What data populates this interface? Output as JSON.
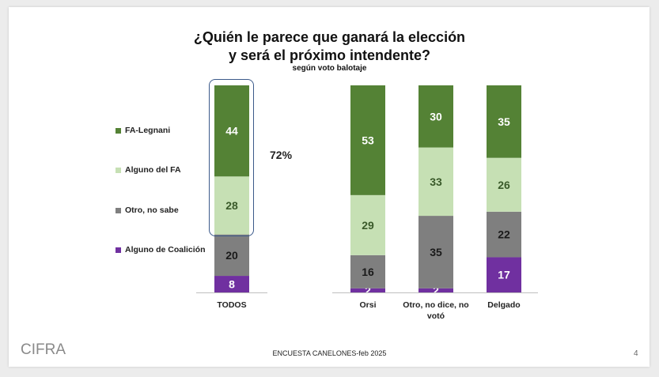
{
  "title_line1": "¿Quién le parece que ganará la elección",
  "title_line2": "y será el próximo intendente?",
  "subtitle": "según voto balotaje",
  "highlight_value": "72%",
  "footer": "ENCUESTA CANELONES-feb 2025",
  "page_number": "4",
  "logo_text": "CIFRA",
  "colors": {
    "fa_legnani": "#548235",
    "alguno_fa": "#c6e0b4",
    "otro_no_sabe": "#7f7f7f",
    "alguno_coalicion": "#7030a0",
    "highlight_box": "#3b5a8a"
  },
  "chart_data": {
    "type": "bar",
    "stacked": true,
    "title": "¿Quién le parece que ganará la elección y será el próximo intendente?",
    "subtitle": "según voto balotaje",
    "categories": [
      "TODOS",
      "Orsi",
      "Otro, no dice, no votó",
      "Delgado"
    ],
    "category_labels": [
      [
        "TODOS"
      ],
      [
        "Orsi"
      ],
      [
        "Otro, no dice, no",
        "votó"
      ],
      [
        "Delgado"
      ]
    ],
    "series": [
      {
        "name": "Alguno de Coalición",
        "values": [
          8,
          2,
          2,
          17
        ]
      },
      {
        "name": "Otro, no sabe",
        "values": [
          20,
          16,
          35,
          22
        ]
      },
      {
        "name": "Alguno del FA",
        "values": [
          28,
          29,
          33,
          26
        ]
      },
      {
        "name": "FA-Legnani",
        "values": [
          44,
          53,
          30,
          35
        ]
      }
    ],
    "legend": [
      "FA-Legnani",
      "Alguno del FA",
      "Otro, no sabe",
      "Alguno de Coalición"
    ],
    "legend_position": "left",
    "annotation": "72%",
    "ylim": [
      0,
      100
    ]
  }
}
